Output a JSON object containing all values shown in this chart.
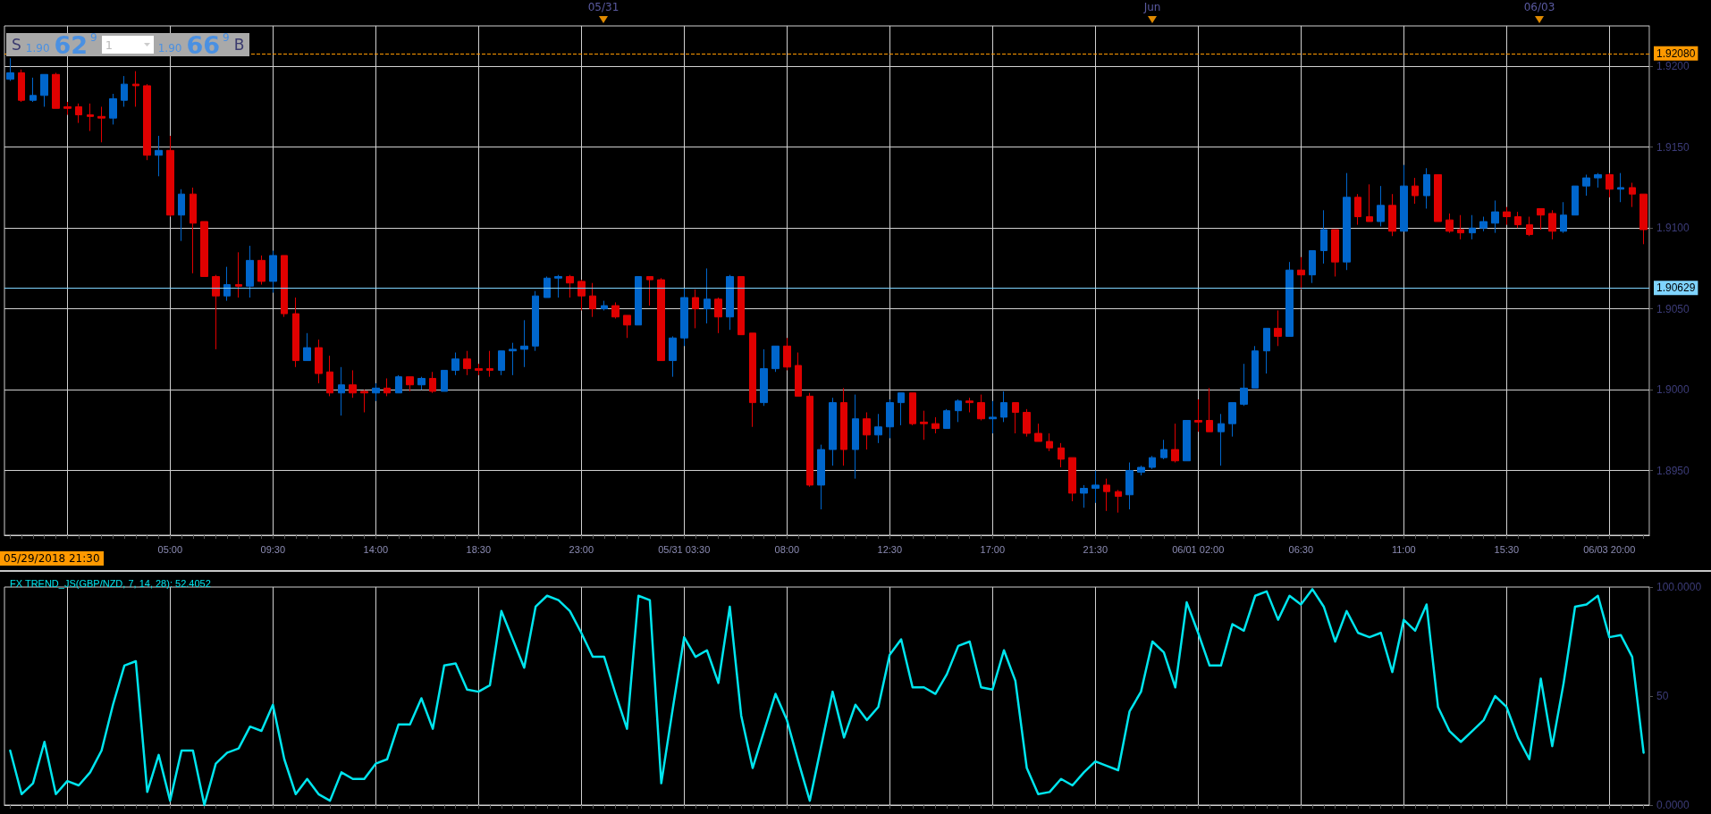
{
  "chart_data": [
    {
      "type": "candlestick",
      "categories": [
        null,
        null,
        null,
        null,
        null,
        null,
        null,
        null,
        null,
        null,
        null,
        null,
        null,
        null,
        "05:00",
        null,
        null,
        null,
        null,
        null,
        null,
        null,
        null,
        "09:30",
        null,
        null,
        null,
        null,
        null,
        null,
        null,
        null,
        "14:00",
        null,
        null,
        null,
        null,
        null,
        null,
        null,
        null,
        "18:30",
        null,
        null,
        null,
        null,
        null,
        null,
        null,
        null,
        "23:00",
        null,
        null,
        null,
        null,
        null,
        null,
        null,
        null,
        "05/31 03:30",
        null,
        null,
        null,
        null,
        null,
        null,
        null,
        null,
        "08:00",
        null,
        null,
        null,
        null,
        null,
        null,
        null,
        null,
        "12:30",
        null,
        null,
        null,
        null,
        null,
        null,
        null,
        null,
        "17:00",
        null,
        null,
        null,
        null,
        null,
        null,
        null,
        null,
        "21:30",
        null,
        null,
        null,
        null,
        null,
        null,
        null,
        null,
        "06/01 02:00",
        null,
        null,
        null,
        null,
        null,
        null,
        null,
        null,
        "06:30",
        null,
        null,
        null,
        null,
        null,
        null,
        null,
        null,
        "11:00",
        null,
        null,
        null,
        null,
        null,
        null,
        null,
        null,
        "15:30",
        null,
        null,
        null,
        null,
        null,
        null,
        null,
        null,
        "06/03 20:00",
        null,
        null,
        null
      ],
      "ohlc": [
        [
          1.9192,
          1.9205,
          1.9191,
          1.9196
        ],
        [
          1.9196,
          1.9198,
          1.9178,
          1.9179
        ],
        [
          1.9179,
          1.9193,
          1.9178,
          1.9182
        ],
        [
          1.9182,
          1.9195,
          1.9175,
          1.9195
        ],
        [
          1.9195,
          1.9196,
          1.9174,
          1.9174
        ],
        [
          1.9175,
          1.9178,
          1.917,
          1.9174
        ],
        [
          1.9175,
          1.9177,
          1.9165,
          1.917
        ],
        [
          1.917,
          1.9177,
          1.916,
          1.9169
        ],
        [
          1.9169,
          1.9175,
          1.9153,
          1.9168
        ],
        [
          1.9168,
          1.9183,
          1.9164,
          1.918
        ],
        [
          1.9179,
          1.9194,
          1.9175,
          1.9189
        ],
        [
          1.9189,
          1.9197,
          1.9175,
          1.9188
        ],
        [
          1.9188,
          1.9189,
          1.9142,
          1.9145
        ],
        [
          1.9145,
          1.9157,
          1.9132,
          1.9148
        ],
        [
          1.9148,
          1.9157,
          1.9107,
          1.9108
        ],
        [
          1.9108,
          1.9124,
          1.9092,
          1.9121
        ],
        [
          1.9121,
          1.9125,
          1.9072,
          1.9103
        ],
        [
          1.9104,
          1.9104,
          1.907,
          1.907
        ],
        [
          1.907,
          1.9071,
          1.9025,
          1.9058
        ],
        [
          1.9058,
          1.9076,
          1.9055,
          1.9065
        ],
        [
          1.9065,
          1.9085,
          1.9057,
          1.9064
        ],
        [
          1.9064,
          1.9089,
          1.9057,
          1.908
        ],
        [
          1.908,
          1.9083,
          1.9065,
          1.9067
        ],
        [
          1.9067,
          1.9086,
          1.906,
          1.9083
        ],
        [
          1.9083,
          1.9083,
          1.9045,
          1.9047
        ],
        [
          1.9047,
          1.9057,
          1.9014,
          1.9018
        ],
        [
          1.9018,
          1.9035,
          1.9018,
          1.9026
        ],
        [
          1.9026,
          1.9031,
          1.9004,
          1.901
        ],
        [
          1.9011,
          1.9021,
          1.8996,
          1.8998
        ],
        [
          1.8998,
          1.9014,
          1.8984,
          1.9003
        ],
        [
          1.9003,
          1.9012,
          1.8995,
          1.8998
        ],
        [
          1.8999,
          1.9,
          1.8986,
          1.8998
        ],
        [
          1.8998,
          1.9004,
          1.8993,
          1.9001
        ],
        [
          1.9001,
          1.9007,
          1.8996,
          1.8998
        ],
        [
          1.8998,
          1.9009,
          1.8998,
          1.9008
        ],
        [
          1.9008,
          1.9008,
          1.8999,
          1.9003
        ],
        [
          1.9003,
          1.9008,
          1.9,
          1.9007
        ],
        [
          1.9007,
          1.9011,
          1.8998,
          1.8999
        ],
        [
          1.8999,
          1.9012,
          1.8999,
          1.9012
        ],
        [
          1.9012,
          1.9023,
          1.9009,
          1.9019
        ],
        [
          1.9019,
          1.9024,
          1.9009,
          1.9013
        ],
        [
          1.9013,
          1.9016,
          1.9009,
          1.9012
        ],
        [
          1.9013,
          1.9024,
          1.9008,
          1.9012
        ],
        [
          1.9012,
          1.9024,
          1.9009,
          1.9024
        ],
        [
          1.9024,
          1.9029,
          1.9009,
          1.9025
        ],
        [
          1.9025,
          1.9043,
          1.9014,
          1.9027
        ],
        [
          1.9027,
          1.9061,
          1.9024,
          1.9058
        ],
        [
          1.9057,
          1.907,
          1.9057,
          1.9069
        ],
        [
          1.9069,
          1.9071,
          1.9057,
          1.907
        ],
        [
          1.907,
          1.9071,
          1.9057,
          1.9066
        ],
        [
          1.9067,
          1.9068,
          1.9049,
          1.9058
        ],
        [
          1.9058,
          1.9066,
          1.9045,
          1.905
        ],
        [
          1.905,
          1.9055,
          1.9049,
          1.9052
        ],
        [
          1.9052,
          1.9054,
          1.9044,
          1.9045
        ],
        [
          1.9046,
          1.9046,
          1.9032,
          1.904
        ],
        [
          1.904,
          1.907,
          1.904,
          1.907
        ],
        [
          1.907,
          1.907,
          1.9052,
          1.9068
        ],
        [
          1.9068,
          1.9069,
          1.9018,
          1.9018
        ],
        [
          1.9018,
          1.9033,
          1.9008,
          1.9032
        ],
        [
          1.9032,
          1.9063,
          1.9027,
          1.9057
        ],
        [
          1.9057,
          1.9062,
          1.9038,
          1.905
        ],
        [
          1.905,
          1.9075,
          1.9041,
          1.9056
        ],
        [
          1.9056,
          1.9057,
          1.9035,
          1.9045
        ],
        [
          1.9045,
          1.9071,
          1.9037,
          1.907
        ],
        [
          1.907,
          1.907,
          1.9034,
          1.9034
        ],
        [
          1.9035,
          1.9035,
          1.8977,
          1.8992
        ],
        [
          1.8992,
          1.9025,
          1.899,
          1.9013
        ],
        [
          1.9013,
          1.9027,
          1.9011,
          1.9027
        ],
        [
          1.9027,
          1.9032,
          1.9012,
          1.9014
        ],
        [
          1.9015,
          1.9023,
          1.8996,
          1.8996
        ],
        [
          1.8996,
          1.8998,
          1.894,
          1.8941
        ],
        [
          1.8941,
          1.8966,
          1.8926,
          1.8963
        ],
        [
          1.8963,
          1.8995,
          1.8953,
          1.8992
        ],
        [
          1.8992,
          1.9001,
          1.8953,
          1.8963
        ],
        [
          1.8963,
          1.8997,
          1.8945,
          1.8982
        ],
        [
          1.8982,
          1.8986,
          1.8963,
          1.8972
        ],
        [
          1.8972,
          1.8985,
          1.8967,
          1.8977
        ],
        [
          1.8977,
          1.8994,
          1.897,
          1.8992
        ],
        [
          1.8992,
          1.8998,
          1.8978,
          1.8998
        ],
        [
          1.8998,
          1.8998,
          1.8978,
          1.8979
        ],
        [
          1.898,
          1.8987,
          1.8969,
          1.8979
        ],
        [
          1.8979,
          1.8983,
          1.8973,
          1.8976
        ],
        [
          1.8976,
          1.8988,
          1.8976,
          1.8987
        ],
        [
          1.8987,
          1.8994,
          1.898,
          1.8993
        ],
        [
          1.8993,
          1.8995,
          1.8986,
          1.8992
        ],
        [
          1.8992,
          1.8997,
          1.8981,
          1.8982
        ],
        [
          1.8982,
          1.8993,
          1.8973,
          1.8983
        ],
        [
          1.8983,
          1.8999,
          1.898,
          1.8992
        ],
        [
          1.8992,
          1.8992,
          1.8973,
          1.8986
        ],
        [
          1.8986,
          1.8988,
          1.8971,
          1.8973
        ],
        [
          1.8973,
          1.8979,
          1.8968,
          1.8968
        ],
        [
          1.8968,
          1.8973,
          1.8962,
          1.8964
        ],
        [
          1.8964,
          1.8967,
          1.8952,
          1.8957
        ],
        [
          1.8958,
          1.8958,
          1.8931,
          1.8936
        ],
        [
          1.8936,
          1.8941,
          1.8927,
          1.8939
        ],
        [
          1.8939,
          1.895,
          1.893,
          1.8941
        ],
        [
          1.8941,
          1.8945,
          1.8925,
          1.8937
        ],
        [
          1.8937,
          1.8938,
          1.8924,
          1.8934
        ],
        [
          1.8935,
          1.8955,
          1.8926,
          1.895
        ],
        [
          1.8949,
          1.8953,
          1.8947,
          1.8952
        ],
        [
          1.8952,
          1.8959,
          1.8951,
          1.8958
        ],
        [
          1.8958,
          1.8969,
          1.8957,
          1.8963
        ],
        [
          1.8963,
          1.8979,
          1.8955,
          1.8956
        ],
        [
          1.8956,
          1.8981,
          1.8956,
          1.8981
        ],
        [
          1.8981,
          1.8994,
          1.8974,
          1.898
        ],
        [
          1.8981,
          1.9001,
          1.8974,
          1.8974
        ],
        [
          1.8974,
          1.8985,
          1.8953,
          1.8979
        ],
        [
          1.8979,
          1.8992,
          1.8971,
          1.8992
        ],
        [
          1.8991,
          1.9016,
          1.899,
          1.9001
        ],
        [
          1.9001,
          1.9027,
          1.9001,
          1.9024
        ],
        [
          1.9024,
          1.9038,
          1.901,
          1.9038
        ],
        [
          1.9038,
          1.9049,
          1.9027,
          1.9033
        ],
        [
          1.9033,
          1.9079,
          1.9033,
          1.9074
        ],
        [
          1.9074,
          1.9082,
          1.9062,
          1.9071
        ],
        [
          1.9071,
          1.9086,
          1.9066,
          1.9086
        ],
        [
          1.9086,
          1.9111,
          1.9078,
          1.9099
        ],
        [
          1.9099,
          1.9099,
          1.907,
          1.9079
        ],
        [
          1.9079,
          1.9134,
          1.9074,
          1.9119
        ],
        [
          1.9119,
          1.9121,
          1.9102,
          1.9107
        ],
        [
          1.9107,
          1.9127,
          1.9104,
          1.9104
        ],
        [
          1.9104,
          1.9126,
          1.9101,
          1.9114
        ],
        [
          1.9114,
          1.9121,
          1.9095,
          1.9098
        ],
        [
          1.9098,
          1.9139,
          1.9098,
          1.9126
        ],
        [
          1.9126,
          1.9131,
          1.9115,
          1.912
        ],
        [
          1.912,
          1.9137,
          1.9112,
          1.9133
        ],
        [
          1.9133,
          1.9133,
          1.9104,
          1.9104
        ],
        [
          1.9105,
          1.9109,
          1.9097,
          1.9098
        ],
        [
          1.9099,
          1.9108,
          1.9093,
          1.9097
        ],
        [
          1.9097,
          1.9108,
          1.9093,
          1.91
        ],
        [
          1.91,
          1.9107,
          1.9098,
          1.9104
        ],
        [
          1.9103,
          1.9117,
          1.9097,
          1.911
        ],
        [
          1.911,
          1.9113,
          1.9102,
          1.9107
        ],
        [
          1.9107,
          1.911,
          1.91,
          1.9102
        ],
        [
          1.9102,
          1.9107,
          1.9095,
          1.9096
        ],
        [
          1.9112,
          1.9112,
          1.9099,
          1.9108
        ],
        [
          1.9109,
          1.9111,
          1.9093,
          1.9098
        ],
        [
          1.9098,
          1.9116,
          1.9097,
          1.9108
        ],
        [
          1.9108,
          1.9126,
          1.9108,
          1.9126
        ],
        [
          1.9126,
          1.9133,
          1.912,
          1.9131
        ],
        [
          1.9131,
          1.9134,
          1.9125,
          1.9133
        ],
        [
          1.9133,
          1.9134,
          1.9119,
          1.9124
        ],
        [
          1.9124,
          1.9134,
          1.9116,
          1.9125
        ],
        [
          1.9125,
          1.9128,
          1.9113,
          1.9121
        ],
        [
          1.9121,
          1.9121,
          1.909,
          1.9099
        ]
      ],
      "colors": [
        "#0066cc",
        "#e00000",
        "#0066cc",
        "#0066cc",
        "#e00000",
        "#e00000",
        "#e00000",
        "#e00000",
        "#e00000",
        "#0066cc",
        "#0066cc",
        "#e00000",
        "#e00000",
        "#0066cc",
        "#e00000",
        "#0066cc",
        "#e00000",
        "#e00000",
        "#e00000",
        "#0066cc",
        "#e00000",
        "#0066cc",
        "#e00000",
        "#0066cc",
        "#e00000",
        "#e00000",
        "#0066cc",
        "#e00000",
        "#e00000",
        "#0066cc",
        "#e00000",
        "#e00000",
        "#0066cc",
        "#e00000",
        "#0066cc",
        "#e00000",
        "#0066cc",
        "#e00000",
        "#0066cc",
        "#0066cc",
        "#e00000",
        "#e00000",
        "#e00000",
        "#0066cc",
        "#0066cc",
        "#0066cc",
        "#0066cc",
        "#0066cc",
        "#0066cc",
        "#e00000",
        "#e00000",
        "#e00000",
        "#0066cc",
        "#e00000",
        "#e00000",
        "#0066cc",
        "#e00000",
        "#e00000",
        "#0066cc",
        "#0066cc",
        "#e00000",
        "#0066cc",
        "#e00000",
        "#0066cc",
        "#e00000",
        "#e00000",
        "#0066cc",
        "#0066cc",
        "#e00000",
        "#e00000",
        "#e00000",
        "#0066cc",
        "#0066cc",
        "#e00000",
        "#0066cc",
        "#e00000",
        "#0066cc",
        "#0066cc",
        "#0066cc",
        "#e00000",
        "#e00000",
        "#e00000",
        "#0066cc",
        "#0066cc",
        "#e00000",
        "#e00000",
        "#0066cc",
        "#0066cc",
        "#e00000",
        "#e00000",
        "#e00000",
        "#e00000",
        "#e00000",
        "#e00000",
        "#0066cc",
        "#0066cc",
        "#e00000",
        "#e00000",
        "#0066cc",
        "#0066cc",
        "#0066cc",
        "#0066cc",
        "#e00000",
        "#0066cc",
        "#e00000",
        "#e00000",
        "#0066cc",
        "#0066cc",
        "#0066cc",
        "#0066cc",
        "#0066cc",
        "#e00000",
        "#0066cc",
        "#e00000",
        "#0066cc",
        "#0066cc",
        "#e00000",
        "#0066cc",
        "#e00000",
        "#e00000",
        "#0066cc",
        "#e00000",
        "#0066cc",
        "#e00000",
        "#0066cc",
        "#e00000",
        "#e00000",
        "#e00000",
        "#0066cc",
        "#0066cc",
        "#0066cc",
        "#e00000",
        "#e00000",
        "#e00000",
        "#e00000",
        "#e00000",
        "#0066cc",
        "#0066cc",
        "#0066cc",
        "#0066cc",
        "#e00000",
        "#0066cc",
        "#e00000",
        "#e00000"
      ],
      "ylim": [
        1.891,
        1.9225
      ],
      "yticks": [
        {
          "value": 1.895,
          "label": "1.8950"
        },
        {
          "value": 1.9,
          "label": "1.9000"
        },
        {
          "value": 1.905,
          "label": "1.9050"
        },
        {
          "value": 1.91,
          "label": "1.9100"
        },
        {
          "value": 1.915,
          "label": "1.9150"
        },
        {
          "value": 1.92,
          "label": "1.9200"
        }
      ],
      "grid": true,
      "ref_lines": [
        {
          "axis": "y",
          "value": 1.9208,
          "label": "1.92080",
          "color": "#ff9900",
          "line_style": "dashed"
        },
        {
          "axis": "y",
          "value": 1.90629,
          "label": "1.90629",
          "color": "#7fd4ff"
        }
      ],
      "annotations": [
        "05/29/2018 21:30",
        "S",
        "1.90",
        "62$^{9}$",
        "1",
        "1.90",
        "66$^{9}$",
        "B",
        "05/31",
        "Jun",
        "06/03"
      ]
    },
    {
      "type": "line",
      "title": "FX TREND_JS(GBP/NZD, 7, 14, 28): 52.4052",
      "categories": [
        null,
        null,
        null,
        null,
        null,
        null,
        null,
        null,
        null,
        null,
        null,
        null,
        null,
        null,
        null,
        null,
        null,
        null,
        null,
        null,
        null,
        null,
        null,
        null,
        null,
        null,
        null,
        null,
        null,
        null,
        null,
        null,
        null,
        null,
        null,
        null,
        null,
        null,
        null,
        null,
        null,
        null,
        null,
        null,
        null,
        null,
        null,
        null,
        null,
        null,
        null,
        null,
        null,
        null,
        null,
        null,
        null,
        null,
        null,
        null,
        null,
        null,
        null,
        null,
        null,
        null,
        null,
        null,
        null,
        null,
        null,
        null,
        null,
        null,
        null,
        null,
        null,
        null,
        null,
        null,
        null,
        null,
        null,
        null,
        null,
        null,
        null,
        null,
        null,
        null,
        null,
        null,
        null,
        null,
        null,
        null,
        null,
        null,
        null,
        null,
        null,
        null,
        null,
        null,
        null,
        null,
        null,
        null,
        null,
        null,
        null,
        null,
        null,
        null,
        null,
        null,
        null,
        null,
        null,
        null,
        null,
        null,
        null,
        null,
        null,
        null,
        null,
        null,
        null,
        null,
        null,
        null,
        null,
        null,
        null,
        null,
        null,
        null,
        null,
        null,
        null,
        null,
        null,
        null
      ],
      "values": [
        25,
        5,
        10,
        29,
        5,
        11,
        9,
        15,
        25,
        46,
        64,
        66,
        6,
        23,
        2,
        25,
        25,
        0,
        19,
        24,
        26,
        36,
        34,
        46,
        21,
        5,
        12,
        5,
        2,
        15,
        12,
        12,
        19,
        21,
        37,
        37,
        49,
        35,
        64,
        65,
        53,
        52,
        55,
        89,
        76,
        63,
        91,
        96,
        94,
        89,
        79,
        68,
        68,
        51,
        35,
        96,
        94,
        10,
        44,
        77,
        68,
        71,
        56,
        91,
        41,
        17,
        34,
        51,
        39,
        20,
        2,
        27,
        52,
        31,
        46,
        39,
        45,
        69,
        76,
        54,
        54,
        51,
        60,
        73,
        75,
        54,
        53,
        71,
        57,
        17,
        5,
        6,
        12,
        9,
        15,
        20,
        18,
        16,
        43,
        52,
        75,
        70,
        54,
        93,
        79,
        64,
        64,
        83,
        80,
        96,
        98,
        85,
        96,
        92,
        99,
        91,
        75,
        89,
        79,
        77,
        79,
        61,
        85,
        80,
        92,
        45,
        34,
        29,
        34,
        39,
        50,
        45,
        31,
        21,
        58,
        27,
        56,
        91,
        92,
        96,
        77,
        78,
        68,
        24
      ],
      "color": "#00e5ee",
      "ylim": [
        0,
        100
      ],
      "yticks": [
        {
          "value": 0,
          "label": "0.0000"
        },
        50,
        {
          "value": 100,
          "label": "100.0000"
        }
      ],
      "grid": "x",
      "marker": "none"
    }
  ]
}
